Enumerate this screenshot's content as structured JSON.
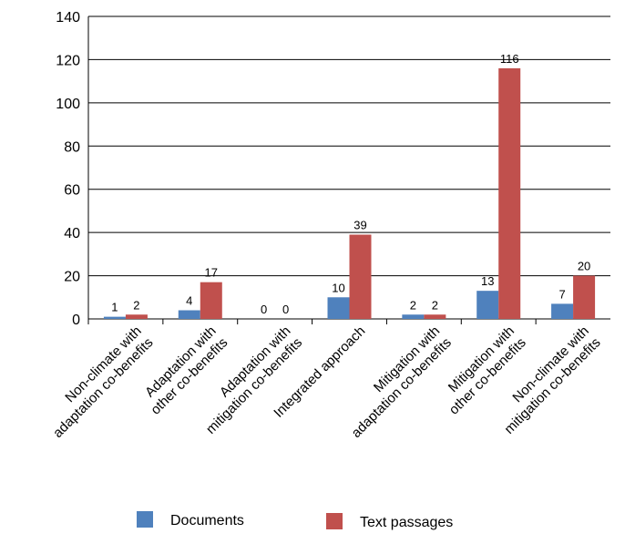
{
  "chart_data": {
    "type": "bar",
    "categories": [
      [
        "Non-climate with",
        "adaptation co-benefits"
      ],
      [
        "Adaptation with",
        "other co-benefits"
      ],
      [
        "Adaptation with",
        "mitigation co-benefits"
      ],
      [
        "Integrated approach"
      ],
      [
        "Mitigation with",
        "adaptation co-benefits"
      ],
      [
        "Mitigation with",
        "other co-benefits"
      ],
      [
        "Non-climate with",
        "mitigation co-benefits"
      ]
    ],
    "series": [
      {
        "name": "Documents",
        "values": [
          1,
          4,
          0,
          10,
          2,
          13,
          7
        ],
        "color": "#4f81bd"
      },
      {
        "name": "Text passages",
        "values": [
          2,
          17,
          0,
          39,
          2,
          116,
          20
        ],
        "color": "#c0504d"
      }
    ],
    "ylim": [
      0,
      140
    ],
    "yticks": [
      0,
      20,
      40,
      60,
      80,
      100,
      120,
      140
    ],
    "grid": true,
    "legend_position": "bottom"
  }
}
